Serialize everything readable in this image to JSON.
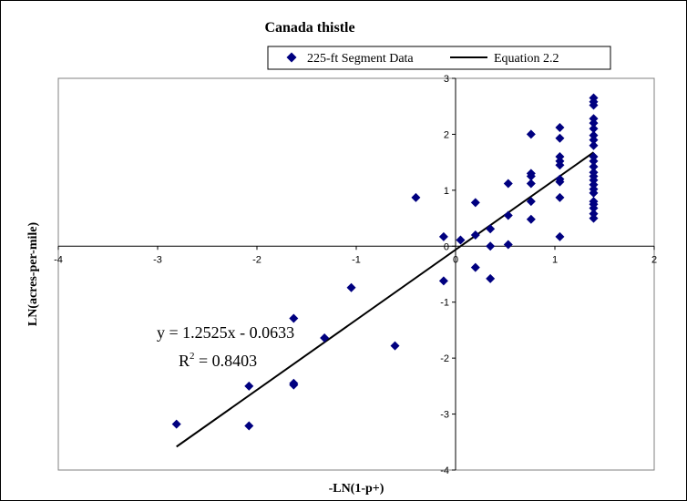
{
  "chart_data": {
    "type": "scatter",
    "title": "Canada thistle",
    "xlabel": "-LN(1-p+)",
    "ylabel": "LN(acres-per-mile)",
    "xlim": [
      -4,
      2
    ],
    "ylim": [
      -4,
      3
    ],
    "x_ticks": [
      -4,
      -3,
      -2,
      -1,
      0,
      1,
      2
    ],
    "y_ticks": [
      -4,
      -3,
      -2,
      -1,
      0,
      1,
      2,
      3
    ],
    "grid": false,
    "legend": {
      "position": "top",
      "entries": [
        "225-ft Segment Data",
        "Equation 2.2"
      ]
    },
    "series": [
      {
        "name": "225-ft Segment Data",
        "kind": "points",
        "color": "#000080",
        "points": [
          [
            -2.81,
            -3.18
          ],
          [
            -2.08,
            -3.21
          ],
          [
            -2.08,
            -2.5
          ],
          [
            -1.63,
            -2.45
          ],
          [
            -1.63,
            -2.48
          ],
          [
            -1.63,
            -1.29
          ],
          [
            -1.32,
            -1.64
          ],
          [
            -1.05,
            -0.74
          ],
          [
            -0.61,
            -1.78
          ],
          [
            -0.4,
            0.87
          ],
          [
            -0.12,
            0.17
          ],
          [
            -0.12,
            -0.62
          ],
          [
            0.05,
            0.11
          ],
          [
            0.2,
            0.78
          ],
          [
            0.2,
            0.2
          ],
          [
            0.2,
            -0.38
          ],
          [
            0.35,
            0.31
          ],
          [
            0.35,
            0.0
          ],
          [
            0.35,
            -0.58
          ],
          [
            0.53,
            1.12
          ],
          [
            0.53,
            0.55
          ],
          [
            0.53,
            0.03
          ],
          [
            0.76,
            2.0
          ],
          [
            0.76,
            1.3
          ],
          [
            0.76,
            1.25
          ],
          [
            0.76,
            1.12
          ],
          [
            0.76,
            0.8
          ],
          [
            0.76,
            0.48
          ],
          [
            1.05,
            2.12
          ],
          [
            1.05,
            1.93
          ],
          [
            1.05,
            1.6
          ],
          [
            1.05,
            1.52
          ],
          [
            1.05,
            1.45
          ],
          [
            1.05,
            1.2
          ],
          [
            1.05,
            1.15
          ],
          [
            1.05,
            0.87
          ],
          [
            1.05,
            0.17
          ],
          [
            1.39,
            2.65
          ],
          [
            1.39,
            2.58
          ],
          [
            1.39,
            2.52
          ],
          [
            1.39,
            2.28
          ],
          [
            1.39,
            2.2
          ],
          [
            1.39,
            2.1
          ],
          [
            1.39,
            1.98
          ],
          [
            1.39,
            1.9
          ],
          [
            1.39,
            1.8
          ],
          [
            1.39,
            1.6
          ],
          [
            1.39,
            1.52
          ],
          [
            1.39,
            1.42
          ],
          [
            1.39,
            1.32
          ],
          [
            1.39,
            1.25
          ],
          [
            1.39,
            1.18
          ],
          [
            1.39,
            1.1
          ],
          [
            1.39,
            1.02
          ],
          [
            1.39,
            0.95
          ],
          [
            1.39,
            0.8
          ],
          [
            1.39,
            0.75
          ],
          [
            1.39,
            0.68
          ],
          [
            1.39,
            0.58
          ],
          [
            1.39,
            0.5
          ]
        ]
      },
      {
        "name": "Equation 2.2",
        "kind": "line",
        "color": "#000000",
        "slope": 1.2525,
        "intercept": -0.0633,
        "x_range": [
          -2.81,
          1.39
        ]
      }
    ],
    "annotations": [
      "y = 1.2525x - 0.0633",
      "R",
      "2",
      " = 0.8403"
    ]
  }
}
